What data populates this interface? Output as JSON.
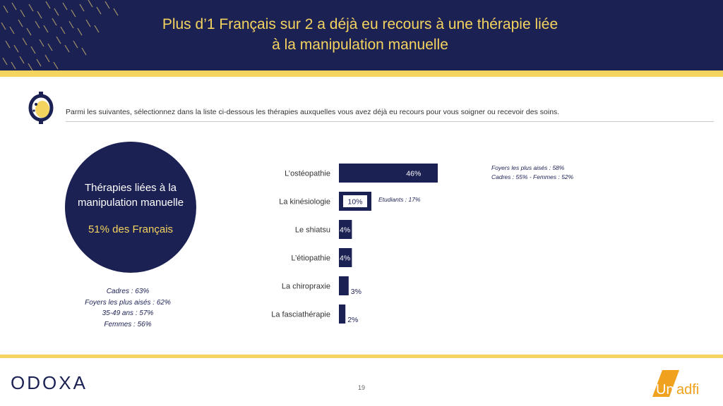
{
  "header": {
    "title_line1": "Plus d’1 Français sur 2 a déjà eu recours à une thérapie liée",
    "title_line2": "à la manipulation manuelle"
  },
  "question": "Parmi les suivantes, sélectionnez dans la liste ci-dessous les thérapies auxquelles vous avez déjà eu recours pour vous soigner ou recevoir des soins.",
  "summary": {
    "label_line1": "Thérapies liées à la",
    "label_line2": "manipulation manuelle",
    "value": "51% des Français",
    "breakdown": [
      "Cadres : 63%",
      "Foyers les plus aisés : 62%",
      "35-49 ans : 57%",
      "Femmes : 56%"
    ]
  },
  "chart_data": {
    "type": "bar",
    "orientation": "horizontal",
    "categories": [
      "L’ostéopathie",
      "La kinésiologie",
      "Le shiatsu",
      "L’étiopathie",
      "La chiropraxie",
      "La fasciathérapie"
    ],
    "values": [
      46,
      10,
      4,
      4,
      3,
      2
    ],
    "labels": [
      "46%",
      "10%",
      "4%",
      "4%",
      "3%",
      "2%"
    ],
    "annotations": [
      {
        "category": "L’ostéopathie",
        "lines": [
          "Foyers les plus aisés : 58%",
          "Cadres : 55% - Femmes : 52%"
        ]
      },
      {
        "category": "La kinésiologie",
        "lines": [
          "Etudiants : 17%"
        ]
      }
    ]
  },
  "footer": {
    "logo_left": "ODOXA",
    "page_number": "19",
    "logo_right_a": "Un",
    "logo_right_b": "adfi"
  },
  "colors": {
    "navy": "#1c2154",
    "yellow": "#f4d35e",
    "orange": "#f0a11e"
  }
}
